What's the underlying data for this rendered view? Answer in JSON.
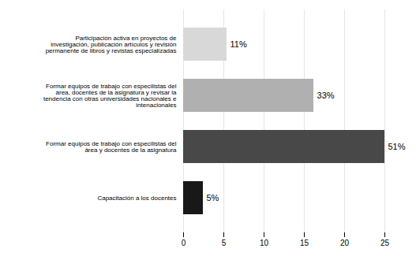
{
  "chart_data": {
    "type": "bar",
    "orientation": "horizontal",
    "categories": [
      "Participación activa en proyectos de\ninvestigación, publicación artículos y revisión\npermanente de libros y revistas especializadas",
      "Formar equipos de trabajo con especilistas del\nárea, docentes de la asignatura y revisar la\ntendencia con otras universidades nacionales e\nintenacionales",
      "Formar equipos de trabajo con especilistas del\nárea y docentes de la asignatura",
      "Capacitación a los docentes"
    ],
    "values": [
      5.39,
      16.18,
      25.0,
      2.45
    ],
    "value_labels": [
      "11%",
      "33%",
      "51%",
      "5%"
    ],
    "data_labels": true,
    "colors": [
      "#d8d8d8",
      "#b0b0b0",
      "#484848",
      "#181818"
    ],
    "xlim": [
      0,
      25
    ],
    "xticks": [
      0,
      5,
      10,
      15,
      20,
      25
    ],
    "grid": true
  }
}
